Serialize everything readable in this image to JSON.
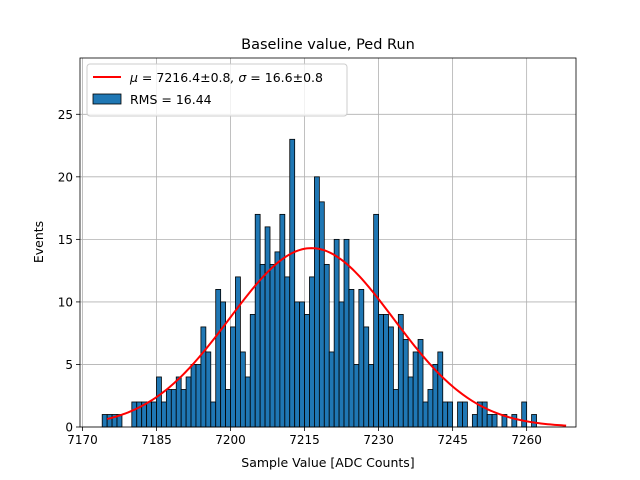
{
  "chart_data": {
    "type": "bar",
    "title": "Baseline value, Ped Run",
    "xlabel": "Sample Value [ADC Counts]",
    "ylabel": "Events",
    "xlim": [
      7169.5,
      7270
    ],
    "ylim": [
      0,
      29.5
    ],
    "xticks": [
      7170,
      7185,
      7200,
      7215,
      7230,
      7245,
      7260
    ],
    "yticks": [
      0,
      5,
      10,
      15,
      20,
      25
    ],
    "grid": true,
    "legend_position": "upper-left",
    "bins": {
      "start": 7174,
      "width": 1,
      "counts": [
        1,
        1,
        1,
        1,
        0,
        0,
        2,
        2,
        2,
        2,
        2,
        4,
        2,
        3,
        3,
        4,
        3,
        4,
        5,
        5,
        8,
        6,
        2,
        11,
        10,
        3,
        8,
        12,
        6,
        4,
        9,
        17,
        13,
        16,
        13,
        14,
        17,
        12,
        23,
        10,
        10,
        9,
        12,
        20,
        18,
        13,
        6,
        15,
        10,
        15,
        11,
        5,
        11,
        8,
        5,
        17,
        9,
        9,
        8,
        3,
        9,
        7,
        4,
        6,
        7,
        2,
        3,
        5,
        6,
        2,
        2,
        0,
        2,
        2,
        0,
        1,
        2,
        2,
        1,
        1,
        0,
        1,
        0,
        1,
        0,
        2,
        0,
        1
      ],
      "color": "#1f77b4",
      "edge_color": "#000000"
    },
    "series": [
      {
        "name": "RMS = 16.44",
        "kind": "histogram",
        "color": "#1f77b4"
      },
      {
        "name_prefix": "μ = ",
        "mu": "7216.4±0.8",
        "name_mid": ", σ = ",
        "sigma": "16.6±0.8",
        "kind": "gaussian_fit",
        "color": "#ff0000",
        "amplitude": 14.3,
        "mean": 7216.4,
        "std": 16.6,
        "x_range": [
          7175,
          7268
        ]
      }
    ]
  }
}
